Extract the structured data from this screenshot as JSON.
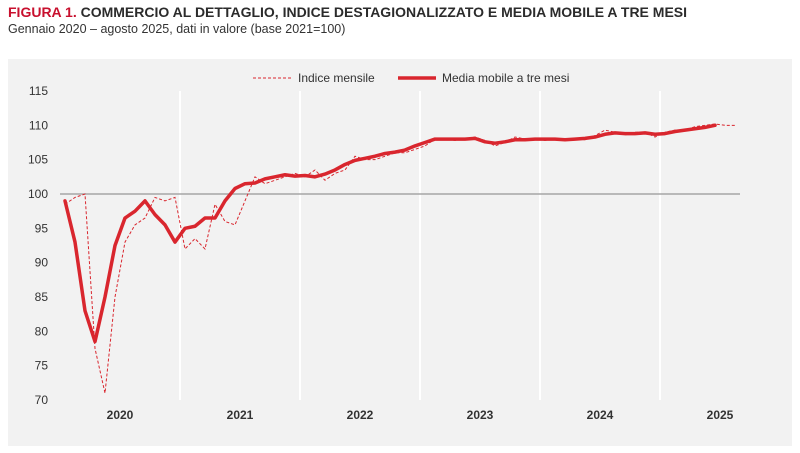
{
  "figure": {
    "label": "FIGURA 1.",
    "title": "COMMERCIO AL DETTAGLIO, INDICE DESTAGIONALIZZATO E MEDIA MOBILE A TRE MESI",
    "subtitle": "Gennaio 2020 – agosto 2025, dati in valore (base 2021=100)"
  },
  "colors": {
    "accent": "#c8102e",
    "series_line": "#d9262e",
    "gridline": "#ffffff",
    "baseline": "#a6a6a6",
    "panel": "#f2f2f2"
  },
  "chart_data": {
    "type": "line",
    "title": "COMMERCIO AL DETTAGLIO, INDICE DESTAGIONALIZZATO E MEDIA MOBILE A TRE MESI",
    "subtitle": "Gennaio 2020 – agosto 2025, dati in valore (base 2021=100)",
    "xlabel": "",
    "ylabel": "",
    "ylim": [
      70,
      115
    ],
    "yticks": [
      70,
      75,
      80,
      85,
      90,
      95,
      100,
      105,
      110,
      115
    ],
    "reference_line": 100,
    "x_start": "2020-01",
    "n_months": 68,
    "year_labels": [
      "2020",
      "2021",
      "2022",
      "2023",
      "2024",
      "2025"
    ],
    "legend_position": "top",
    "series": [
      {
        "name": "Indice mensile",
        "style": "dashed-thin",
        "values": [
          98.5,
          99.5,
          100.0,
          77.5,
          71.0,
          85.0,
          93.0,
          95.5,
          96.5,
          99.5,
          99.0,
          99.5,
          92.0,
          93.5,
          92.0,
          98.5,
          96.0,
          95.5,
          99.0,
          102.5,
          101.5,
          102.0,
          102.5,
          103.0,
          102.5,
          103.5,
          102.0,
          103.0,
          103.5,
          105.5,
          105.0,
          105.0,
          105.5,
          106.0,
          106.0,
          106.5,
          107.0,
          108.0,
          108.0,
          107.8,
          108.0,
          108.3,
          107.8,
          107.0,
          107.5,
          108.3,
          108.0,
          108.0,
          107.8,
          108.0,
          107.8,
          108.0,
          107.9,
          108.5,
          109.3,
          109.0,
          108.6,
          109.0,
          109.0,
          108.3,
          109.0,
          109.3,
          109.3,
          109.8,
          110.0,
          110.2,
          110.0,
          110.0
        ]
      },
      {
        "name": "Media mobile a tre mesi",
        "style": "solid-thick",
        "values": [
          99.0,
          93.0,
          83.0,
          78.5,
          85.0,
          92.5,
          96.5,
          97.5,
          99.0,
          97.0,
          95.5,
          93.0,
          95.0,
          95.3,
          96.5,
          96.5,
          99.0,
          100.8,
          101.5,
          101.6,
          102.2,
          102.5,
          102.8,
          102.6,
          102.7,
          102.5,
          102.9,
          103.5,
          104.3,
          104.9,
          105.2,
          105.5,
          105.9,
          106.1,
          106.4,
          107.0,
          107.5,
          108.0,
          108.0,
          108.0,
          108.0,
          108.1,
          107.6,
          107.4,
          107.6,
          107.9,
          107.9,
          108.0,
          108.0,
          108.0,
          107.9,
          108.0,
          108.1,
          108.3,
          108.7,
          108.9,
          108.8,
          108.8,
          108.9,
          108.7,
          108.8,
          109.1,
          109.3,
          109.5,
          109.7,
          110.0
        ]
      }
    ]
  }
}
